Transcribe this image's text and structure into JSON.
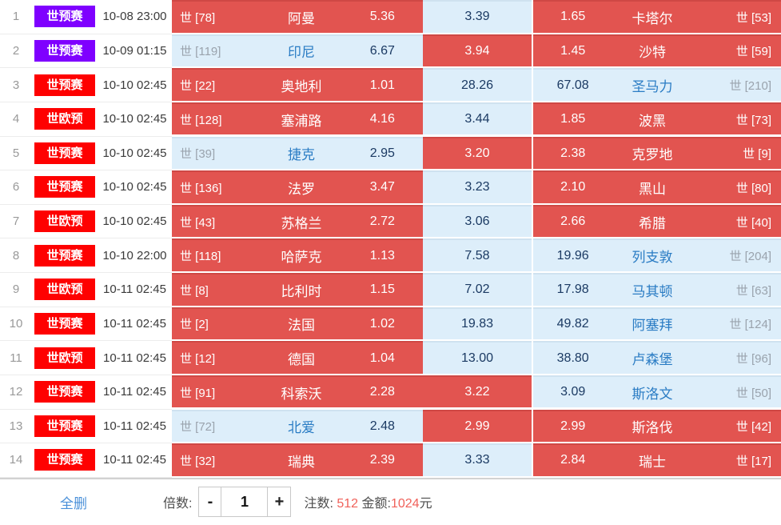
{
  "colors": {
    "selected_bg": "#e25450",
    "unselected_bg": "#ddeefa",
    "badge_purple": "#7f00ff",
    "badge_red": "#fe0101",
    "team_name_blue": "#2a7cc4",
    "odds_navy": "#1b3a63",
    "link_blue": "#4a90d9",
    "stat_red": "#f0615a"
  },
  "matches": [
    {
      "num": "1",
      "league": "世预赛",
      "badge_color": "#7f00ff",
      "time": "10-08 23:00",
      "home": {
        "rank": "世 [78]",
        "name": "阿曼",
        "odds": "5.36",
        "selected": true
      },
      "draw": {
        "odds": "3.39",
        "selected": false
      },
      "away": {
        "odds": "1.65",
        "name": "卡塔尔",
        "rank": "世 [53]",
        "selected": true
      }
    },
    {
      "num": "2",
      "league": "世预赛",
      "badge_color": "#7f00ff",
      "time": "10-09 01:15",
      "home": {
        "rank": "世 [119]",
        "name": "印尼",
        "odds": "6.67",
        "selected": false
      },
      "draw": {
        "odds": "3.94",
        "selected": true
      },
      "away": {
        "odds": "1.45",
        "name": "沙特",
        "rank": "世 [59]",
        "selected": true
      }
    },
    {
      "num": "3",
      "league": "世预赛",
      "badge_color": "#fe0101",
      "time": "10-10 02:45",
      "home": {
        "rank": "世 [22]",
        "name": "奥地利",
        "odds": "1.01",
        "selected": true
      },
      "draw": {
        "odds": "28.26",
        "selected": false
      },
      "away": {
        "odds": "67.08",
        "name": "圣马力",
        "rank": "世 [210]",
        "selected": false
      }
    },
    {
      "num": "4",
      "league": "世欧预",
      "badge_color": "#fe0101",
      "time": "10-10 02:45",
      "home": {
        "rank": "世 [128]",
        "name": "塞浦路",
        "odds": "4.16",
        "selected": true
      },
      "draw": {
        "odds": "3.44",
        "selected": false
      },
      "away": {
        "odds": "1.85",
        "name": "波黑",
        "rank": "世 [73]",
        "selected": true
      }
    },
    {
      "num": "5",
      "league": "世预赛",
      "badge_color": "#fe0101",
      "time": "10-10 02:45",
      "home": {
        "rank": "世 [39]",
        "name": "捷克",
        "odds": "2.95",
        "selected": false
      },
      "draw": {
        "odds": "3.20",
        "selected": true
      },
      "away": {
        "odds": "2.38",
        "name": "克罗地",
        "rank": "世 [9]",
        "selected": true
      }
    },
    {
      "num": "6",
      "league": "世预赛",
      "badge_color": "#fe0101",
      "time": "10-10 02:45",
      "home": {
        "rank": "世 [136]",
        "name": "法罗",
        "odds": "3.47",
        "selected": true
      },
      "draw": {
        "odds": "3.23",
        "selected": false
      },
      "away": {
        "odds": "2.10",
        "name": "黑山",
        "rank": "世 [80]",
        "selected": true
      }
    },
    {
      "num": "7",
      "league": "世欧预",
      "badge_color": "#fe0101",
      "time": "10-10 02:45",
      "home": {
        "rank": "世 [43]",
        "name": "苏格兰",
        "odds": "2.72",
        "selected": true
      },
      "draw": {
        "odds": "3.06",
        "selected": false
      },
      "away": {
        "odds": "2.66",
        "name": "希腊",
        "rank": "世 [40]",
        "selected": true
      }
    },
    {
      "num": "8",
      "league": "世预赛",
      "badge_color": "#fe0101",
      "time": "10-10 22:00",
      "home": {
        "rank": "世 [118]",
        "name": "哈萨克",
        "odds": "1.13",
        "selected": true
      },
      "draw": {
        "odds": "7.58",
        "selected": false
      },
      "away": {
        "odds": "19.96",
        "name": "列支敦",
        "rank": "世 [204]",
        "selected": false
      }
    },
    {
      "num": "9",
      "league": "世欧预",
      "badge_color": "#fe0101",
      "time": "10-11 02:45",
      "home": {
        "rank": "世 [8]",
        "name": "比利时",
        "odds": "1.15",
        "selected": true
      },
      "draw": {
        "odds": "7.02",
        "selected": false
      },
      "away": {
        "odds": "17.98",
        "name": "马其顿",
        "rank": "世 [63]",
        "selected": false
      }
    },
    {
      "num": "10",
      "league": "世预赛",
      "badge_color": "#fe0101",
      "time": "10-11 02:45",
      "home": {
        "rank": "世 [2]",
        "name": "法国",
        "odds": "1.02",
        "selected": true
      },
      "draw": {
        "odds": "19.83",
        "selected": false
      },
      "away": {
        "odds": "49.82",
        "name": "阿塞拜",
        "rank": "世 [124]",
        "selected": false
      }
    },
    {
      "num": "11",
      "league": "世欧预",
      "badge_color": "#fe0101",
      "time": "10-11 02:45",
      "home": {
        "rank": "世 [12]",
        "name": "德国",
        "odds": "1.04",
        "selected": true
      },
      "draw": {
        "odds": "13.00",
        "selected": false
      },
      "away": {
        "odds": "38.80",
        "name": "卢森堡",
        "rank": "世 [96]",
        "selected": false
      }
    },
    {
      "num": "12",
      "league": "世预赛",
      "badge_color": "#fe0101",
      "time": "10-11 02:45",
      "home": {
        "rank": "世 [91]",
        "name": "科索沃",
        "odds": "2.28",
        "selected": true
      },
      "draw": {
        "odds": "3.22",
        "selected": true
      },
      "away": {
        "odds": "3.09",
        "name": "斯洛文",
        "rank": "世 [50]",
        "selected": false
      }
    },
    {
      "num": "13",
      "league": "世预赛",
      "badge_color": "#fe0101",
      "time": "10-11 02:45",
      "home": {
        "rank": "世 [72]",
        "name": "北爱",
        "odds": "2.48",
        "selected": false
      },
      "draw": {
        "odds": "2.99",
        "selected": true
      },
      "away": {
        "odds": "2.99",
        "name": "斯洛伐",
        "rank": "世 [42]",
        "selected": true
      }
    },
    {
      "num": "14",
      "league": "世预赛",
      "badge_color": "#fe0101",
      "time": "10-11 02:45",
      "home": {
        "rank": "世 [32]",
        "name": "瑞典",
        "odds": "2.39",
        "selected": true
      },
      "draw": {
        "odds": "3.33",
        "selected": false
      },
      "away": {
        "odds": "2.84",
        "name": "瑞士",
        "rank": "世 [17]",
        "selected": true
      }
    }
  ],
  "footer": {
    "delete_all": "全删",
    "multiplier_label": "倍数:",
    "minus": "-",
    "multiplier_value": "1",
    "plus": "+",
    "bets_label": "注数:",
    "bets_value": "512",
    "amount_label": "金额:",
    "amount_value": "1024",
    "amount_unit": "元"
  }
}
